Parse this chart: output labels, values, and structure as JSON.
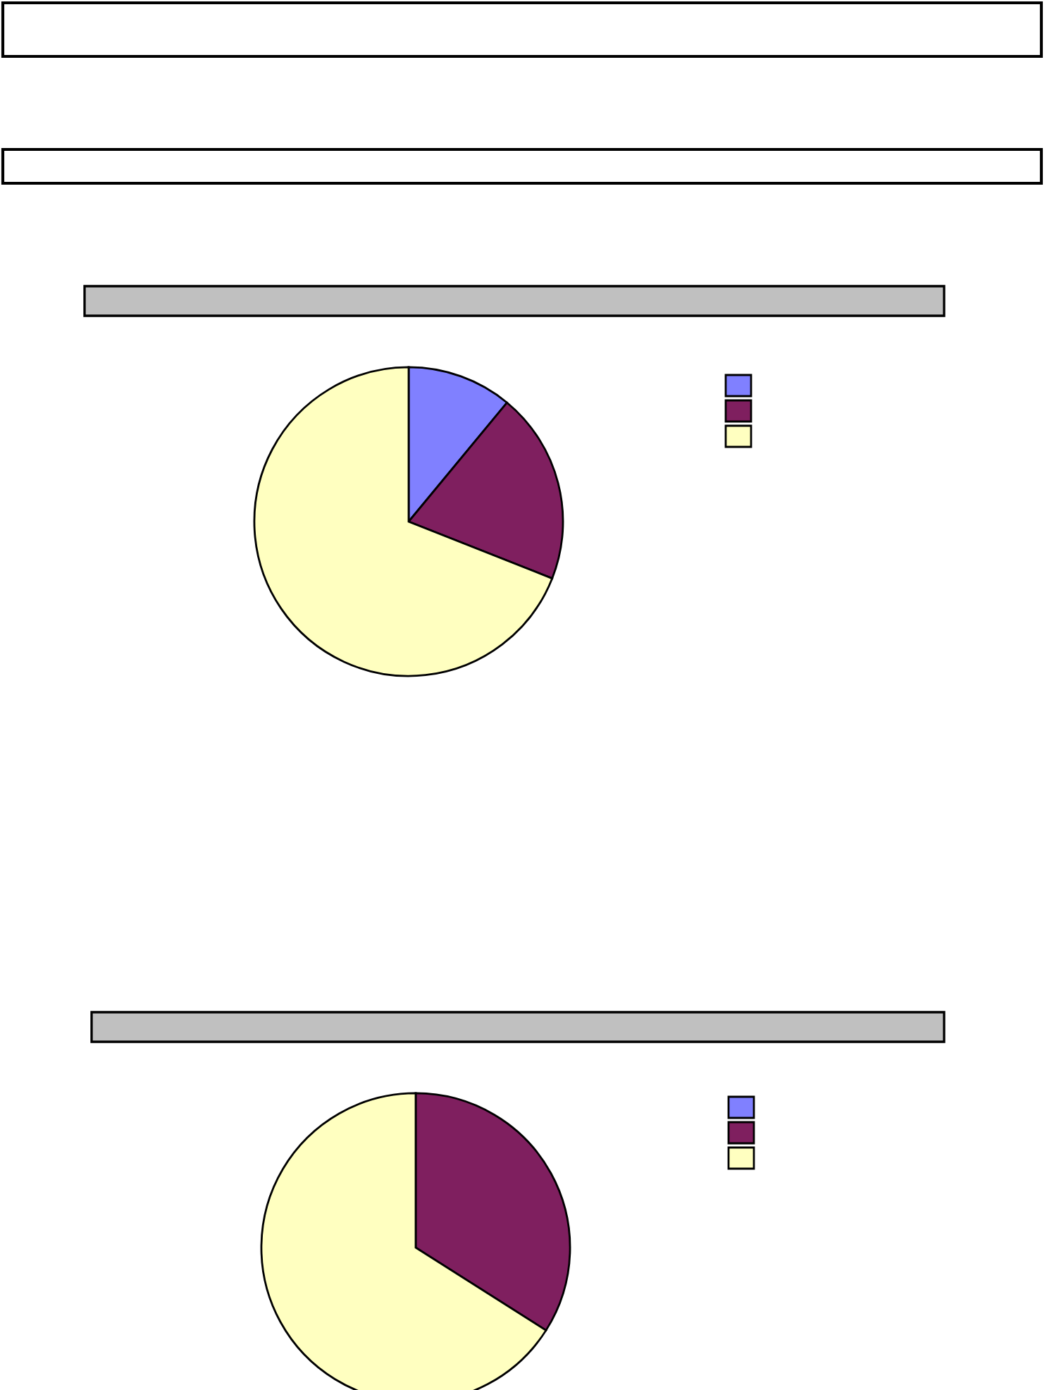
{
  "chart_data": [
    {
      "type": "pie",
      "categories": [
        null,
        null,
        null
      ],
      "values": [
        11,
        20,
        69
      ],
      "colors": [
        "#8080ff",
        "#7f1f5f",
        "#ffffc0"
      ]
    },
    {
      "type": "pie",
      "categories": [
        null,
        null,
        null
      ],
      "values": [
        0,
        34,
        66
      ],
      "colors": [
        "#8080ff",
        "#7f1f5f",
        "#ffffc0"
      ]
    }
  ]
}
